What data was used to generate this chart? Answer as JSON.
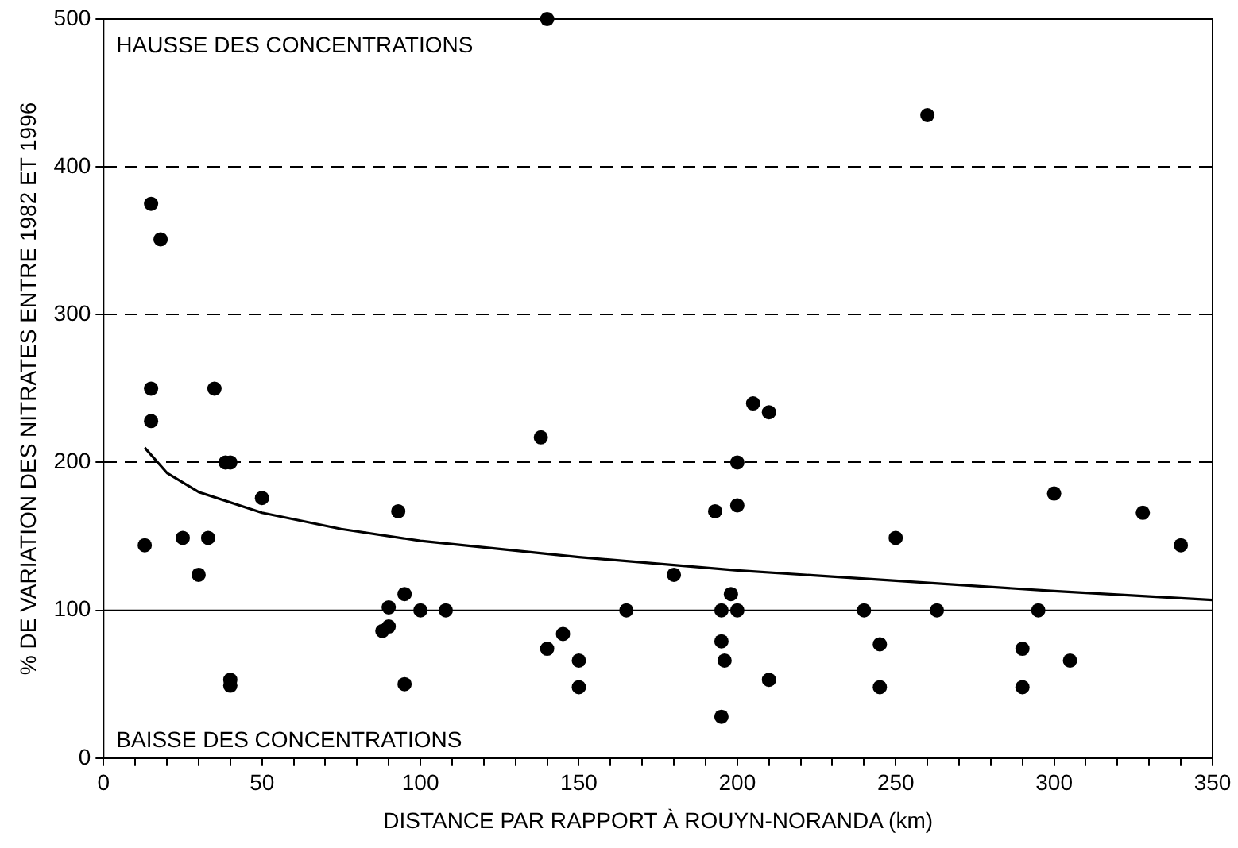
{
  "chart_data": {
    "type": "scatter",
    "xlabel": "DISTANCE PAR RAPPORT À ROUYN-NORANDA (km)",
    "ylabel": "% DE VARIATION DES NITRATES ENTRE 1982 ET 1996",
    "annotations": [
      "HAUSSE DES CONCENTRATIONS",
      "BAISSE DES CONCENTRATIONS"
    ],
    "xlim": [
      0,
      350
    ],
    "ylim": [
      0,
      500
    ],
    "xticks": [
      0,
      {
        "value": 10,
        "label": null
      },
      {
        "value": 20,
        "label": null
      },
      {
        "value": 30,
        "label": null
      },
      {
        "value": 40,
        "label": null
      },
      50,
      {
        "value": 60,
        "label": null
      },
      {
        "value": 70,
        "label": null
      },
      {
        "value": 80,
        "label": null
      },
      {
        "value": 90,
        "label": null
      },
      100,
      {
        "value": 110,
        "label": null
      },
      {
        "value": 120,
        "label": null
      },
      {
        "value": 130,
        "label": null
      },
      {
        "value": 140,
        "label": null
      },
      150,
      {
        "value": 160,
        "label": null
      },
      {
        "value": 170,
        "label": null
      },
      {
        "value": 180,
        "label": null
      },
      {
        "value": 190,
        "label": null
      },
      200,
      {
        "value": 210,
        "label": null
      },
      {
        "value": 220,
        "label": null
      },
      {
        "value": 230,
        "label": null
      },
      {
        "value": 240,
        "label": null
      },
      250,
      {
        "value": 260,
        "label": null
      },
      {
        "value": 270,
        "label": null
      },
      {
        "value": 280,
        "label": null
      },
      {
        "value": 290,
        "label": null
      },
      300,
      {
        "value": 310,
        "label": null
      },
      {
        "value": 320,
        "label": null
      },
      {
        "value": 330,
        "label": null
      },
      {
        "value": 340,
        "label": null
      },
      350
    ],
    "yticks": [
      0,
      100,
      200,
      300,
      400,
      500
    ],
    "grid": "y",
    "line_style": "dashed",
    "marker": "circle",
    "ref_lines": [
      {
        "axis": "y",
        "value": 100,
        "color": "#000000",
        "line_style": "solid"
      }
    ],
    "series": [
      {
        "color": "#000000",
        "x": [
          15,
          18,
          15,
          15,
          35,
          38.5,
          40,
          50,
          13,
          25,
          33,
          30,
          40,
          40,
          93,
          90,
          90,
          88,
          95,
          100,
          95,
          140,
          108,
          138,
          140,
          145,
          150,
          150,
          165,
          180,
          193,
          195,
          195,
          196,
          195,
          198,
          200,
          200,
          200,
          205,
          210,
          210,
          260,
          240,
          245,
          245,
          250,
          263,
          290,
          290,
          295,
          300,
          305,
          328,
          340
        ],
        "values": [
          375,
          351,
          250,
          228,
          250,
          200,
          200,
          176,
          144,
          149,
          149,
          124,
          53,
          49,
          167,
          102,
          89,
          86,
          111,
          100,
          50,
          500,
          100,
          217,
          74,
          84,
          66,
          48,
          100,
          124,
          167,
          100,
          79,
          66,
          28,
          111,
          200,
          171,
          100,
          240,
          234,
          53,
          435,
          100,
          77,
          48,
          149,
          100,
          74,
          48,
          100,
          179,
          66,
          166,
          144
        ]
      },
      {
        "type": "line",
        "color": "#000000",
        "line_style": "solid",
        "marker": "none",
        "x": [
          13,
          20,
          30,
          50,
          75,
          100,
          150,
          200,
          250,
          300,
          350
        ],
        "values": [
          210,
          193,
          180,
          166,
          155,
          147,
          136,
          127,
          120,
          113,
          107
        ]
      }
    ]
  }
}
